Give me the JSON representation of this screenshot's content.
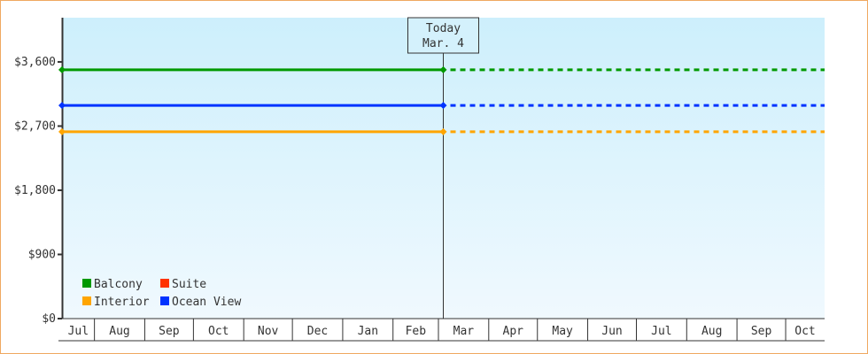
{
  "chart_data": {
    "type": "line",
    "ylabel": "",
    "xlabel": "",
    "ylim": [
      0,
      4220
    ],
    "yticks": [
      0,
      900,
      1800,
      2700,
      3600
    ],
    "ytick_labels": [
      "$0",
      "$900",
      "$1,800",
      "$2,700",
      "$3,600"
    ],
    "x_range": [
      "Jul 12",
      "Oct 25"
    ],
    "x_tick_labels": [
      "Jul",
      "Aug",
      "Sep",
      "Oct",
      "Nov",
      "Dec",
      "Jan",
      "Feb",
      "Mar",
      "Apr",
      "May",
      "Jun",
      "Jul",
      "Aug",
      "Sep",
      "Oct"
    ],
    "today": {
      "label": "Today",
      "date_label": "Mar. 4",
      "date": "Mar 4"
    },
    "legend_position": "bottom-left",
    "grid": false,
    "series": [
      {
        "name": "Balcony",
        "color": "#009900",
        "values": [
          {
            "x": "Jul 12",
            "y": 3490
          },
          {
            "x": "Mar 4",
            "y": 3490
          }
        ],
        "projected_to": "Oct 25"
      },
      {
        "name": "Suite",
        "color": "#ff3300",
        "values": []
      },
      {
        "name": "Interior",
        "color": "#ffa500",
        "values": [
          {
            "x": "Jul 12",
            "y": 2620
          },
          {
            "x": "Mar 4",
            "y": 2620
          }
        ],
        "projected_to": "Oct 25"
      },
      {
        "name": "Ocean View",
        "color": "#0033ff",
        "values": [
          {
            "x": "Jul 12",
            "y": 2990
          },
          {
            "x": "Mar 4",
            "y": 2990
          }
        ],
        "projected_to": "Oct 25"
      }
    ],
    "legend_order": [
      "Balcony",
      "Suite",
      "Interior",
      "Ocean View"
    ]
  }
}
